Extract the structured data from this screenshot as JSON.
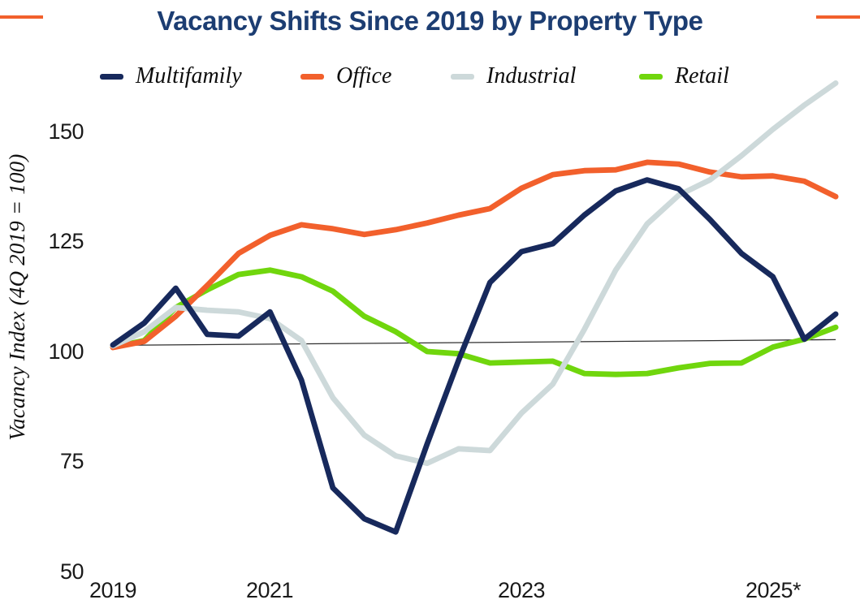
{
  "header": {
    "title": "Vacancy Shifts Since 2019 by Property Type",
    "title_color": "#1c3d72",
    "accent_color": "#f2602c"
  },
  "axes": {
    "y_title": "Vacancy Index (4Q 2019 = 100)"
  },
  "chart_data": {
    "type": "line",
    "title": "Vacancy Shifts Since 2019 by Property Type",
    "xlabel": "",
    "ylabel": "Vacancy Index (4Q 2019 = 100)",
    "ylim": [
      50,
      165
    ],
    "grid": false,
    "legend_position": "top",
    "yticks": [
      150,
      125,
      100,
      75,
      50
    ],
    "xticks": [
      {
        "label": "2019",
        "quarter_index": 0
      },
      {
        "label": "2021",
        "quarter_index": 5
      },
      {
        "label": "2023",
        "quarter_index": 13
      },
      {
        "label": "2025*",
        "quarter_index": 21
      }
    ],
    "x_quarters": [
      "4Q19",
      "1Q20",
      "2Q20",
      "3Q20",
      "4Q20",
      "1Q21",
      "2Q21",
      "3Q21",
      "4Q21",
      "1Q22",
      "2Q22",
      "3Q22",
      "4Q22",
      "1Q23",
      "2Q23",
      "3Q23",
      "4Q23",
      "1Q24",
      "2Q24",
      "3Q24",
      "4Q24",
      "1Q25",
      "2Q25",
      "3Q25"
    ],
    "reference_line": {
      "value": 100,
      "drawn_from": 101.4,
      "drawn_to": 102.7,
      "color": "#2f2f2f"
    },
    "series": [
      {
        "name": "Multifamily",
        "color": "#17295c",
        "values": [
          101.5,
          106.5,
          114.4,
          103.9,
          103.5,
          109,
          93.5,
          69,
          62,
          59,
          79,
          98,
          115.7,
          122.7,
          124.5,
          131,
          136.5,
          139,
          137,
          130,
          122.3,
          117,
          102.8,
          108.5
        ]
      },
      {
        "name": "Office",
        "color": "#f2602c",
        "values": [
          100.9,
          102.3,
          108,
          115,
          122.3,
          126.4,
          128.8,
          127.9,
          126.6,
          127.7,
          129.2,
          131,
          132.5,
          137.1,
          140.2,
          141.1,
          141.3,
          143,
          142.6,
          140.8,
          139.7,
          139.9,
          138.7,
          135.2
        ]
      },
      {
        "name": "Industrial",
        "color": "#cdd9da",
        "values": [
          101.3,
          104.5,
          110,
          109.4,
          109,
          107.5,
          102.5,
          89.5,
          81,
          76.3,
          74.6,
          77.9,
          77.5,
          86,
          92.6,
          105,
          118.5,
          129,
          135.5,
          139,
          144.5,
          150.5,
          156,
          161
        ]
      },
      {
        "name": "Retail",
        "color": "#70d60d",
        "values": [
          101,
          102.5,
          110,
          114,
          117.5,
          118.5,
          117,
          113.7,
          108,
          104.5,
          100,
          99.5,
          97.4,
          97.6,
          97.8,
          95,
          94.8,
          95,
          96.3,
          97.3,
          97.4,
          101,
          102.8,
          105.5
        ]
      }
    ]
  }
}
